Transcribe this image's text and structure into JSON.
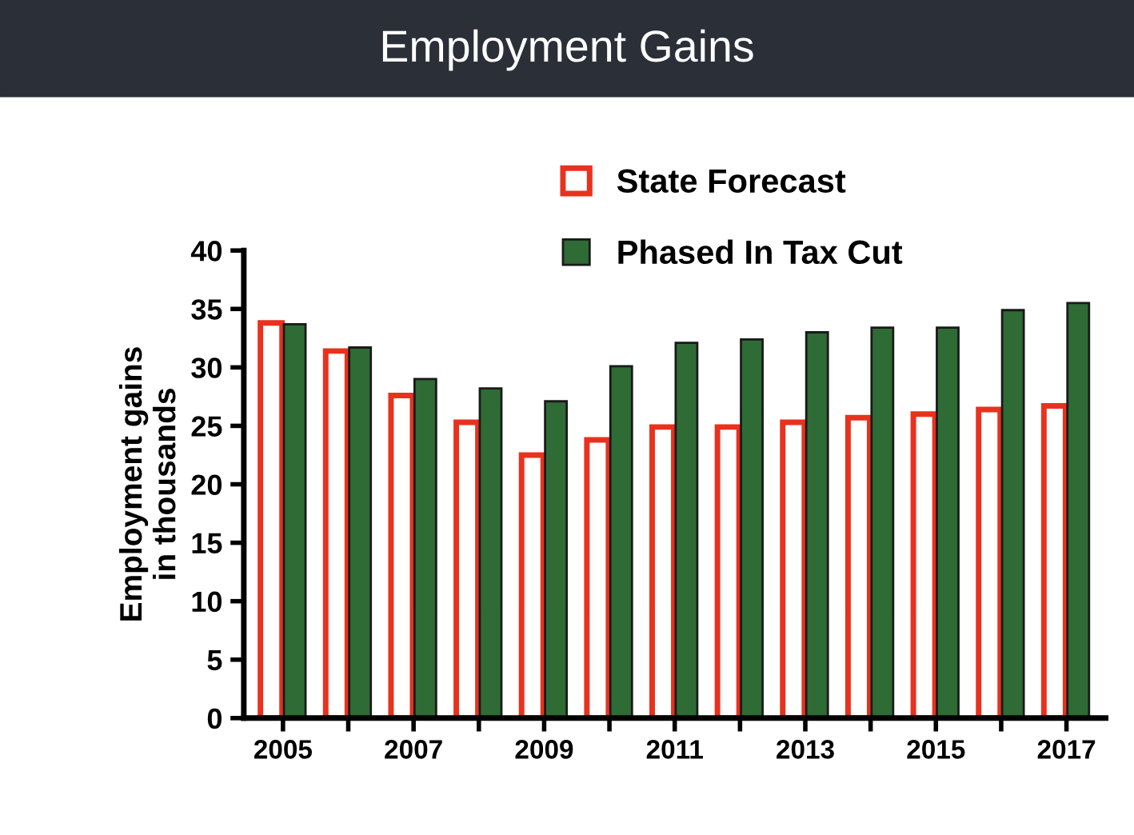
{
  "chart_data": {
    "type": "bar",
    "title": "Employment Gains",
    "ylabel": "Employment gains\nin thousands",
    "categories": [
      "2005",
      null,
      "2007",
      null,
      "2009",
      null,
      "2011",
      null,
      "2013",
      null,
      "2015",
      null,
      "2017"
    ],
    "series": [
      {
        "name": "State Forecast",
        "color": "#e8321e",
        "values": [
          33.8,
          31.4,
          27.6,
          25.3,
          22.5,
          23.8,
          24.9,
          24.9,
          25.3,
          25.7,
          26.0,
          26.4,
          26.7
        ]
      },
      {
        "name": "Phased In Tax Cut",
        "color": "#2e6b35",
        "values": [
          33.7,
          31.7,
          29.0,
          28.2,
          27.1,
          30.1,
          32.1,
          32.4,
          33.0,
          33.4,
          33.4,
          34.9,
          35.5
        ]
      }
    ],
    "ylim": [
      0,
      40
    ],
    "yticks": [
      0,
      5,
      10,
      15,
      20,
      25,
      30,
      35,
      40
    ],
    "grid": false,
    "legend": "top"
  }
}
